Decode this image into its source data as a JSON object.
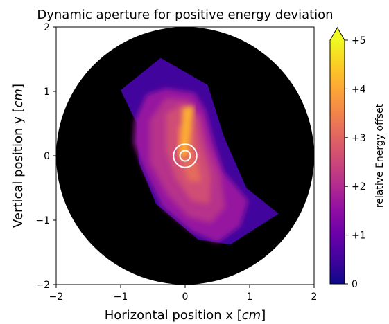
{
  "chart_data": {
    "type": "heatmap",
    "title": "Dynamic aperture for positive energy deviation",
    "xlabel": {
      "prefix": "Horizontal position  x  [",
      "unit": "cm",
      "suffix": "]"
    },
    "ylabel": {
      "prefix": "Vertical position  y  [",
      "unit": "cm",
      "suffix": "]"
    },
    "xlim": [
      -2,
      2
    ],
    "ylim": [
      -2,
      2
    ],
    "x_ticks": [
      -2,
      -1,
      0,
      1,
      2
    ],
    "y_ticks": [
      -2,
      -1,
      0,
      1,
      2
    ],
    "x_tick_labels": [
      "−2",
      "−1",
      "0",
      "1",
      "2"
    ],
    "y_tick_labels": [
      "−2",
      "−1",
      "0",
      "1",
      "2"
    ],
    "background": {
      "shape": "disk",
      "center": [
        0,
        0
      ],
      "radius": 2,
      "color": "#000000"
    },
    "colormap": "plasma",
    "colorbar": {
      "label": "relative Energy offset",
      "range": [
        0,
        5
      ],
      "ticks": [
        0,
        1,
        2,
        3,
        4,
        5
      ],
      "tick_labels": [
        "0",
        "+1",
        "+2",
        "+3",
        "+4",
        "+5"
      ],
      "extend": "max"
    },
    "regions": [
      {
        "name": "offset-0.5",
        "level": 0.5,
        "polygon": [
          [
            -1.0,
            1.02
          ],
          [
            -0.38,
            1.52
          ],
          [
            0.35,
            1.1
          ],
          [
            0.6,
            0.3
          ],
          [
            0.95,
            -0.5
          ],
          [
            1.45,
            -0.9
          ],
          [
            0.7,
            -1.38
          ],
          [
            0.2,
            -1.3
          ],
          [
            -0.45,
            -0.75
          ],
          [
            -0.72,
            -0.1
          ],
          [
            -0.75,
            0.5
          ]
        ]
      },
      {
        "name": "offset-1.6",
        "level": 1.6,
        "polygon": [
          [
            -0.78,
            0.55
          ],
          [
            -0.6,
            0.95
          ],
          [
            -0.3,
            1.05
          ],
          [
            0.15,
            0.98
          ],
          [
            0.32,
            0.7
          ],
          [
            0.45,
            0.2
          ],
          [
            0.6,
            -0.25
          ],
          [
            0.98,
            -0.7
          ],
          [
            0.85,
            -1.1
          ],
          [
            0.5,
            -1.35
          ],
          [
            0.1,
            -1.18
          ],
          [
            -0.35,
            -0.8
          ],
          [
            -0.65,
            -0.2
          ],
          [
            -0.8,
            0.2
          ]
        ]
      },
      {
        "name": "offset-2.1",
        "level": 2.1,
        "polygon": [
          [
            -0.55,
            0.55
          ],
          [
            -0.3,
            0.9
          ],
          [
            0.05,
            0.88
          ],
          [
            0.25,
            0.6
          ],
          [
            0.35,
            0.2
          ],
          [
            0.55,
            -0.3
          ],
          [
            0.62,
            -0.8
          ],
          [
            0.4,
            -1.05
          ],
          [
            0.05,
            -0.95
          ],
          [
            -0.28,
            -0.6
          ],
          [
            -0.55,
            -0.1
          ]
        ]
      },
      {
        "name": "offset-2.6",
        "level": 2.6,
        "polygon": [
          [
            -0.3,
            0.65
          ],
          [
            -0.05,
            0.8
          ],
          [
            0.18,
            0.6
          ],
          [
            0.25,
            0.2
          ],
          [
            0.4,
            -0.3
          ],
          [
            0.38,
            -0.75
          ],
          [
            0.1,
            -0.7
          ],
          [
            -0.15,
            -0.35
          ],
          [
            -0.3,
            0.1
          ]
        ]
      },
      {
        "name": "offset-3.1",
        "level": 3.1,
        "polygon": [
          [
            -0.12,
            0.45
          ],
          [
            0.1,
            0.5
          ],
          [
            0.15,
            0.1
          ],
          [
            0.25,
            -0.4
          ],
          [
            0.05,
            -0.4
          ],
          [
            -0.1,
            0.0
          ]
        ]
      },
      {
        "name": "offset-4.1",
        "level": 4.1,
        "polygon": [
          [
            -0.04,
            0.75
          ],
          [
            0.14,
            0.78
          ],
          [
            0.08,
            0.35
          ],
          [
            0.03,
            0.0
          ],
          [
            -0.1,
            -0.02
          ],
          [
            -0.06,
            0.35
          ]
        ]
      }
    ],
    "markers": [
      {
        "name": "marker-inner",
        "center": [
          0,
          0
        ],
        "radius": 0.08
      },
      {
        "name": "marker-outer",
        "center": [
          0,
          0
        ],
        "radius": 0.18
      }
    ]
  }
}
